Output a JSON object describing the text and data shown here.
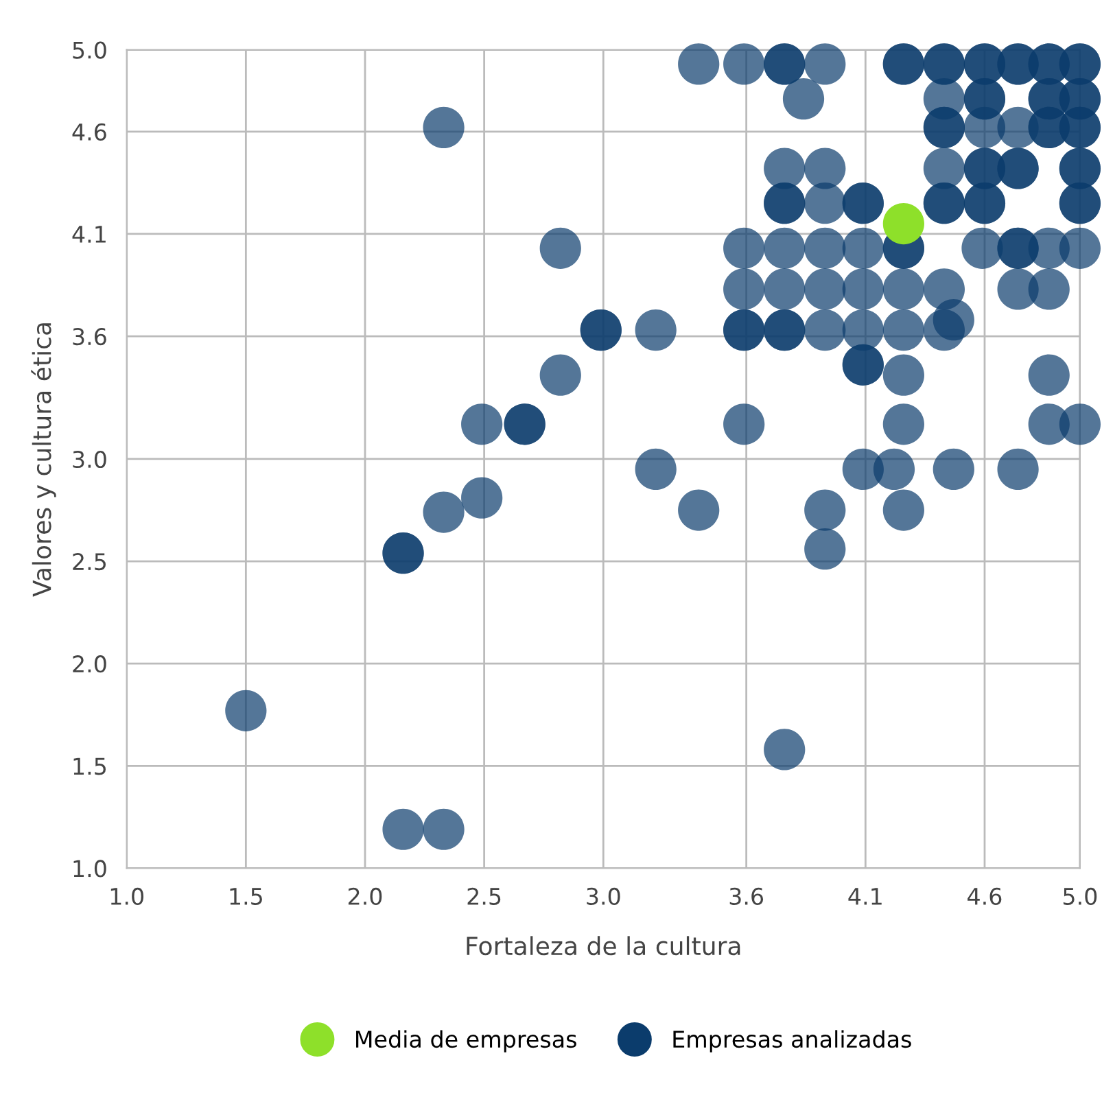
{
  "chart_data": {
    "type": "scatter",
    "xlabel": "Fortaleza de la cultura",
    "ylabel": "Valores y cultura ética",
    "xlim": [
      1,
      5
    ],
    "ylim": [
      1,
      5
    ],
    "xticks": [
      {
        "value": 1,
        "label": "1.0"
      },
      1.5,
      {
        "value": 2,
        "label": "2.0"
      },
      2.5,
      {
        "value": 3,
        "label": "3.0"
      },
      3.6,
      4.1,
      4.6,
      {
        "value": 5,
        "label": "5.0"
      }
    ],
    "yticks": [
      {
        "value": 1,
        "label": "1.0"
      },
      1.5,
      {
        "value": 2,
        "label": "2.0"
      },
      2.5,
      {
        "value": 3,
        "label": "3.0"
      },
      3.6,
      4.1,
      4.6,
      {
        "value": 5,
        "label": "5.0"
      }
    ],
    "grid": true,
    "legend": "bottom",
    "marker": "circle",
    "series": [
      {
        "name": "Empresas analizadas",
        "color": "#0b3c6c",
        "x": [
          1.5,
          2.16,
          2.33,
          3.76,
          2.16,
          2.16,
          2.33,
          2.49,
          2.49,
          2.67,
          2.67,
          2.82,
          2.82,
          2.99,
          2.99,
          3.22,
          2.33,
          3.22,
          3.4,
          3.4,
          3.59,
          3.76,
          3.76,
          3.93,
          3.59,
          3.59,
          3.59,
          3.59,
          3.59,
          3.76,
          3.76,
          3.76,
          3.76,
          3.76,
          3.76,
          3.76,
          3.84,
          3.93,
          3.93,
          3.93,
          3.93,
          3.93,
          3.93,
          3.93,
          4.09,
          4.09,
          4.09,
          4.09,
          4.09,
          4.09,
          4.09,
          4.09,
          4.22,
          4.26,
          4.26,
          4.26,
          4.26,
          4.26,
          4.26,
          4.26,
          4.26,
          4.26,
          4.43,
          4.43,
          4.47,
          4.47,
          4.43,
          4.43,
          4.43,
          4.43,
          4.43,
          4.43,
          4.43,
          4.43,
          4.6,
          4.6,
          4.6,
          4.6,
          4.6,
          4.6,
          4.6,
          4.6,
          4.6,
          4.59,
          4.74,
          4.74,
          4.74,
          4.74,
          4.74,
          4.74,
          4.74,
          4.74,
          4.87,
          4.87,
          4.74,
          4.87,
          4.87,
          4.87,
          4.87,
          4.87,
          4.87,
          4.87,
          4.87,
          5,
          5,
          5,
          5,
          5,
          5,
          5,
          5,
          5,
          5,
          5,
          5
        ],
        "values": [
          1.77,
          1.19,
          1.19,
          1.58,
          2.54,
          2.54,
          2.74,
          2.81,
          3.17,
          3.17,
          3.17,
          3.41,
          4.03,
          3.63,
          3.63,
          3.63,
          4.62,
          2.95,
          2.75,
          4.93,
          4.93,
          4.93,
          4.93,
          4.93,
          4.03,
          3.83,
          3.63,
          3.63,
          3.17,
          4.03,
          3.83,
          3.63,
          3.63,
          4.25,
          4.25,
          4.42,
          4.76,
          4.42,
          4.25,
          4.03,
          3.83,
          3.63,
          2.75,
          2.56,
          4.25,
          4.25,
          4.03,
          3.83,
          3.63,
          3.46,
          3.46,
          2.95,
          2.95,
          4.03,
          4.03,
          3.83,
          3.63,
          3.41,
          3.17,
          2.75,
          4.93,
          4.93,
          3.83,
          3.63,
          3.68,
          2.95,
          4.93,
          4.93,
          4.76,
          4.62,
          4.62,
          4.42,
          4.25,
          4.25,
          4.93,
          4.93,
          4.76,
          4.76,
          4.62,
          4.42,
          4.42,
          4.25,
          4.25,
          4.03,
          4.03,
          4.03,
          4.93,
          4.93,
          4.62,
          4.42,
          4.42,
          3.83,
          3.83,
          4.03,
          2.95,
          4.93,
          4.93,
          4.76,
          4.76,
          4.62,
          4.62,
          3.41,
          3.17,
          4.93,
          4.93,
          4.76,
          4.76,
          4.62,
          4.62,
          4.42,
          4.42,
          4.25,
          4.25,
          4.03,
          3.17
        ]
      },
      {
        "name": "Media de empresas",
        "color": "#8ee02a",
        "x": [
          4.26
        ],
        "values": [
          4.15
        ]
      }
    ]
  }
}
